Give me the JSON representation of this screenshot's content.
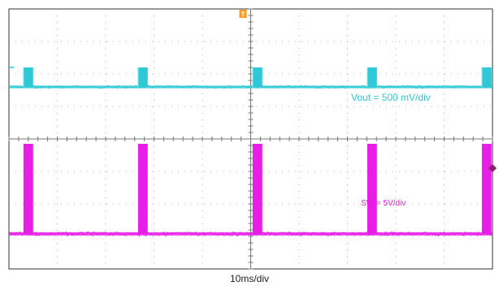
{
  "screen": {
    "background": "#ffffff",
    "border_color": "#333333",
    "grid_color": "#9a9a9a",
    "grid": true
  },
  "trigger_marker": {
    "label": "T",
    "color": "#ff9a1e"
  },
  "time_scale": "10ms/div",
  "chart_data": {
    "type": "line",
    "x_unit": "div",
    "xlim": [
      0,
      10
    ],
    "ylim": [
      0,
      8
    ],
    "series": [
      {
        "name": "Vout = 500 mV/div",
        "color": "#2ec9d6",
        "label_color": "#2ec9d6",
        "baseline_div": 5.6,
        "pulse_high_div": 6.2,
        "pulse_times_div": [
          0.3,
          2.67,
          5.04,
          7.41,
          9.78
        ],
        "pulse_width_div": 0.2,
        "noise_div": 0.04
      },
      {
        "name": "SW = 5V/div",
        "color": "#e61ee6",
        "label_color": "#e61ee6",
        "baseline_div": 1.08,
        "pulse_high_div": 3.85,
        "pulse_times_div": [
          0.3,
          2.67,
          5.04,
          7.41,
          9.78
        ],
        "pulse_width_div": 0.2,
        "noise_div": 0.05
      }
    ]
  }
}
